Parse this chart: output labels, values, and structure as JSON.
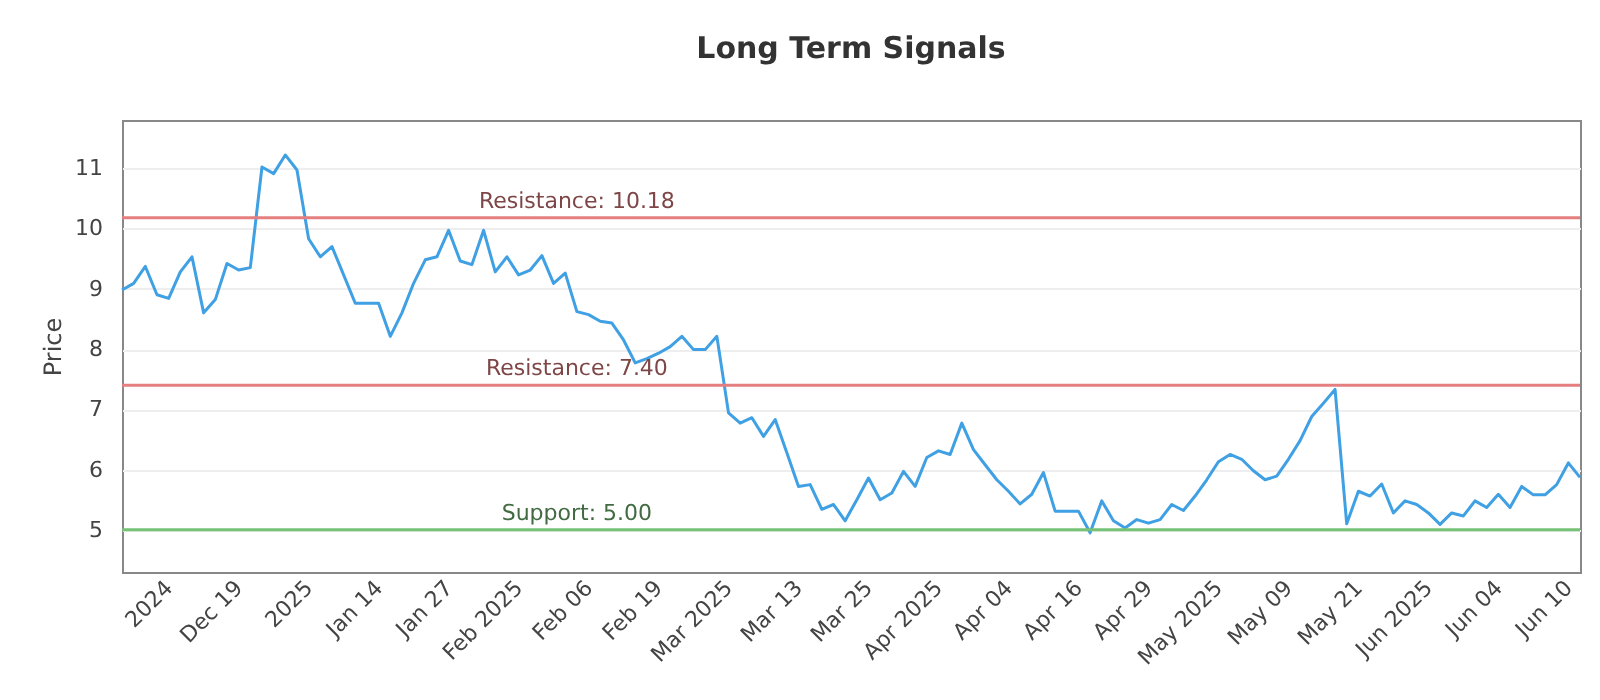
{
  "chart_data": {
    "type": "line",
    "title": "Long Term Signals",
    "ylabel": "Price",
    "categories": [
      null,
      null,
      null,
      null,
      "2024",
      null,
      null,
      null,
      null,
      null,
      "Dec 19",
      null,
      null,
      null,
      null,
      null,
      "2025",
      null,
      null,
      null,
      null,
      null,
      "Jan 14",
      null,
      null,
      null,
      null,
      null,
      "Jan 27",
      null,
      null,
      null,
      null,
      null,
      "Feb 2025",
      null,
      null,
      null,
      null,
      null,
      "Feb 06",
      null,
      null,
      null,
      null,
      null,
      "Feb 19",
      null,
      null,
      null,
      null,
      null,
      "Mar 2025",
      null,
      null,
      null,
      null,
      null,
      "Mar 13",
      null,
      null,
      null,
      null,
      null,
      "Mar 25",
      null,
      null,
      null,
      null,
      null,
      "Apr 2025",
      null,
      null,
      null,
      null,
      null,
      "Apr 04",
      null,
      null,
      null,
      null,
      null,
      "Apr 16",
      null,
      null,
      null,
      null,
      null,
      "Apr 29",
      null,
      null,
      null,
      null,
      null,
      "May 2025",
      null,
      null,
      null,
      null,
      null,
      "May 09",
      null,
      null,
      null,
      null,
      null,
      "May 21",
      null,
      null,
      null,
      null,
      null,
      "Jun 2025",
      null,
      null,
      null,
      null,
      null,
      "Jun 04",
      null,
      null,
      null,
      null,
      null,
      "Jun 10",
      null
    ],
    "series": [
      {
        "color": "#3fa0e3",
        "values": [
          8.98,
          9.09,
          9.37,
          8.9,
          8.84,
          9.28,
          9.53,
          8.6,
          8.82,
          9.42,
          9.31,
          9.35,
          11.02,
          10.91,
          11.22,
          10.97,
          9.83,
          9.53,
          9.7,
          9.23,
          8.76,
          8.76,
          8.76,
          8.21,
          8.6,
          9.09,
          9.48,
          9.53,
          9.97,
          9.46,
          9.4,
          9.97,
          9.28,
          9.53,
          9.23,
          9.31,
          9.55,
          9.09,
          9.26,
          8.62,
          8.57,
          8.46,
          8.43,
          8.15,
          7.77,
          7.84,
          7.93,
          8.04,
          8.21,
          7.99,
          7.99,
          8.21,
          6.94,
          6.77,
          6.86,
          6.55,
          6.83,
          6.28,
          5.72,
          5.75,
          5.34,
          5.42,
          5.15,
          5.5,
          5.86,
          5.5,
          5.61,
          5.97,
          5.72,
          6.2,
          6.31,
          6.25,
          6.77,
          6.33,
          6.08,
          5.83,
          5.64,
          5.43,
          5.59,
          5.95,
          5.31,
          5.31,
          5.31,
          4.95,
          5.48,
          5.15,
          5.03,
          5.17,
          5.11,
          5.17,
          5.42,
          5.32,
          5.56,
          5.83,
          6.13,
          6.25,
          6.17,
          5.98,
          5.83,
          5.89,
          6.17,
          6.48,
          6.88,
          7.1,
          7.33,
          5.1,
          5.64,
          5.56,
          5.76,
          5.28,
          5.48,
          5.42,
          5.28,
          5.09,
          5.28,
          5.23,
          5.48,
          5.37,
          5.59,
          5.37,
          5.72,
          5.58,
          5.58,
          5.75,
          6.11,
          5.87
        ]
      }
    ],
    "ylim": [
      4.3,
      11.8
    ],
    "yticks": [
      5,
      6,
      7,
      8,
      9,
      10,
      11
    ],
    "grid": "y",
    "ref_lines": [
      {
        "axis": "y",
        "value": 10.18,
        "label": "Resistance: 10.18",
        "color": "#e57f7f"
      },
      {
        "axis": "y",
        "value": 7.4,
        "label": "Resistance: 7.40",
        "color": "#e57f7f"
      },
      {
        "axis": "y",
        "value": 5.0,
        "label": "Support: 5.00",
        "color": "#76c276"
      }
    ]
  }
}
